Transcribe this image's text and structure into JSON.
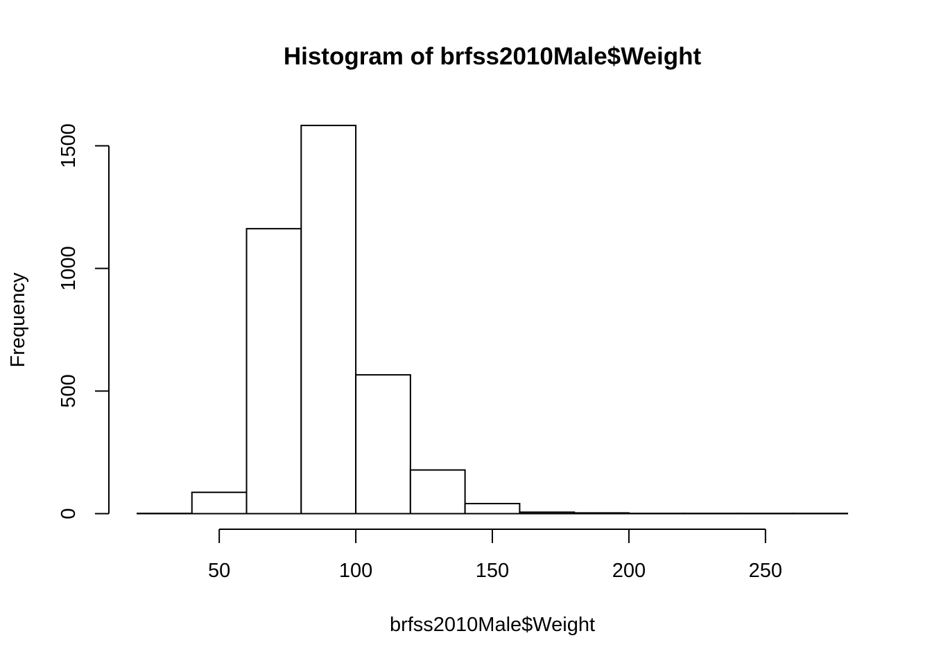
{
  "chart_data": {
    "type": "bar",
    "title": "Histogram of brfss2010Male$Weight",
    "xlabel": "brfss2010Male$Weight",
    "ylabel": "Frequency",
    "bin_edges": [
      20,
      40,
      60,
      80,
      100,
      120,
      140,
      160,
      180,
      200,
      220,
      240,
      260,
      280
    ],
    "values": [
      1,
      87,
      1162,
      1583,
      566,
      178,
      41,
      6,
      3,
      1,
      1,
      1,
      1
    ],
    "xlim": [
      20,
      280
    ],
    "ylim": [
      0,
      1583
    ],
    "x_ticks": [
      50,
      100,
      150,
      200,
      250
    ],
    "x_tick_labels": [
      "50",
      "100",
      "150",
      "200",
      "250"
    ],
    "y_ticks": [
      0,
      500,
      1000,
      1500
    ],
    "y_tick_labels": [
      "0",
      "500",
      "1000",
      "1500"
    ],
    "grid": false,
    "legend": "none",
    "colors": {
      "bar_fill": "#ffffff",
      "bar_stroke": "#000000"
    }
  }
}
